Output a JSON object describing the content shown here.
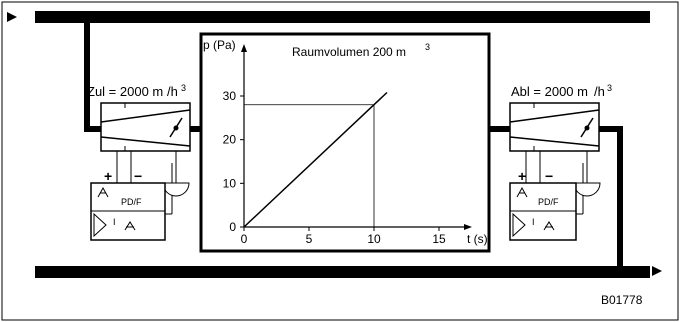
{
  "figure_id": "B01778",
  "supply_label": "Zul = 2000 m",
  "supply_unit_sup": "3",
  "supply_unit_suffix": "/h",
  "exhaust_label": "Abl = 2000 m",
  "exhaust_unit_sup": "3",
  "exhaust_unit_suffix": "/h",
  "chart_title": "Raumvolumen 200 m",
  "chart_title_sup": "3",
  "controller": {
    "plus": "+",
    "minus": "−",
    "pdf_label": "PD/F",
    "i_label": "I"
  },
  "chart_data": {
    "type": "line",
    "title": "Raumvolumen 200 m³",
    "xlabel": "t (s)",
    "ylabel": "p (Pa)",
    "x_ticks": [
      0,
      5,
      10,
      15
    ],
    "y_ticks": [
      0,
      10,
      20,
      30
    ],
    "xlim": [
      0,
      15
    ],
    "ylim": [
      0,
      30
    ],
    "series": [
      {
        "x": [
          0,
          10,
          11
        ],
        "y": [
          0,
          28,
          30.8
        ]
      }
    ],
    "reference_lines": [
      {
        "x": 10,
        "y": 28
      }
    ]
  }
}
